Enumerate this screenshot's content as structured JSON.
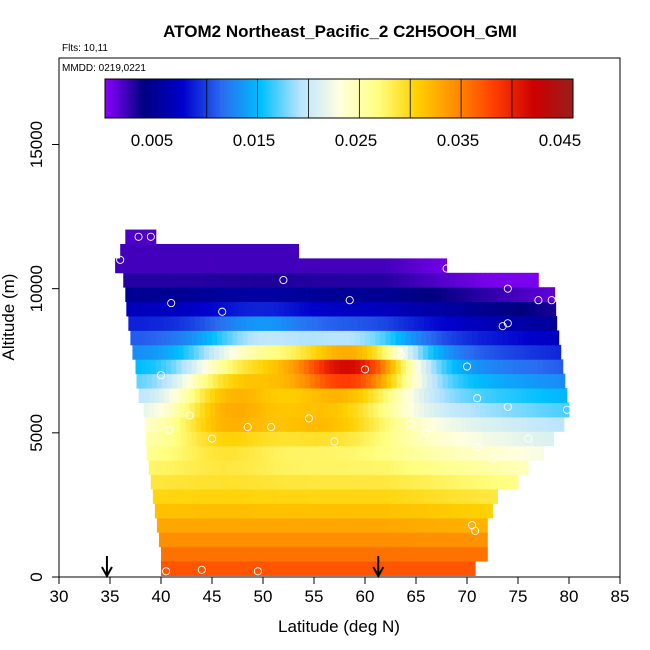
{
  "chart_data": {
    "type": "heatmap",
    "title": "ATOM2 Northeast_Pacific_2 C2H5OOH_GMI",
    "subtitle_flights": "Flts: 10,11",
    "subtitle_dates": "MMDD: 0219,0221",
    "xlabel": "Latitude (deg N)",
    "ylabel": "Altitude (m)",
    "xlim": [
      30,
      85
    ],
    "ylim": [
      0,
      18000
    ],
    "xticks": [
      "30",
      "35",
      "40",
      "45",
      "50",
      "55",
      "60",
      "65",
      "70",
      "75",
      "80",
      "85"
    ],
    "yticks": [
      "0",
      "5000",
      "10000",
      "15000"
    ],
    "colorbar": {
      "range": [
        0,
        0.046
      ],
      "ticks": [
        "0.005",
        "0.015",
        "0.025",
        "0.035",
        "0.045"
      ],
      "colors": [
        "#8b00ff",
        "#00007f",
        "#0000cd",
        "#2a6cf0",
        "#00bfff",
        "#b8e4ff",
        "#ffffe0",
        "#ffff80",
        "#ffd000",
        "#ff8c00",
        "#ff3c00",
        "#cc0000",
        "#9b1d1d"
      ]
    },
    "arrows_at_latitude": [
      34.7,
      61.3
    ],
    "altitude_bands": [
      {
        "alt": 300,
        "lat_start": 40.0,
        "lat_end": 70.8
      },
      {
        "alt": 800,
        "lat_start": 40.0,
        "lat_end": 72.0
      },
      {
        "alt": 1300,
        "lat_start": 39.8,
        "lat_end": 72.0
      },
      {
        "alt": 1800,
        "lat_start": 39.6,
        "lat_end": 72.0
      },
      {
        "alt": 2300,
        "lat_start": 39.4,
        "lat_end": 72.5
      },
      {
        "alt": 2800,
        "lat_start": 39.2,
        "lat_end": 73.0
      },
      {
        "alt": 3300,
        "lat_start": 39.0,
        "lat_end": 75.0
      },
      {
        "alt": 3800,
        "lat_start": 38.8,
        "lat_end": 76.0
      },
      {
        "alt": 4300,
        "lat_start": 38.6,
        "lat_end": 77.5
      },
      {
        "alt": 4800,
        "lat_start": 38.5,
        "lat_end": 78.5
      },
      {
        "alt": 5300,
        "lat_start": 38.4,
        "lat_end": 79.5
      },
      {
        "alt": 5800,
        "lat_start": 38.3,
        "lat_end": 80.0
      },
      {
        "alt": 6300,
        "lat_start": 37.8,
        "lat_end": 79.8
      },
      {
        "alt": 6800,
        "lat_start": 37.6,
        "lat_end": 79.6
      },
      {
        "alt": 7300,
        "lat_start": 37.5,
        "lat_end": 79.4
      },
      {
        "alt": 7800,
        "lat_start": 37.2,
        "lat_end": 79.2
      },
      {
        "alt": 8300,
        "lat_start": 37.0,
        "lat_end": 79.0
      },
      {
        "alt": 8800,
        "lat_start": 36.8,
        "lat_end": 78.8
      },
      {
        "alt": 9300,
        "lat_start": 36.6,
        "lat_end": 78.7
      },
      {
        "alt": 9800,
        "lat_start": 36.5,
        "lat_end": 78.6
      },
      {
        "alt": 10300,
        "lat_start": 36.3,
        "lat_end": 77.0
      },
      {
        "alt": 10800,
        "lat_start": 35.5,
        "lat_end": 68.0
      },
      {
        "alt": 11300,
        "lat_start": 36.0,
        "lat_end": 53.5
      },
      {
        "alt": 11800,
        "lat_start": 36.5,
        "lat_end": 39.5
      }
    ],
    "series_samples": [
      {
        "lat": 40.5,
        "alt": 200
      },
      {
        "lat": 44.0,
        "alt": 250
      },
      {
        "lat": 49.5,
        "alt": 200
      },
      {
        "lat": 36.0,
        "alt": 11000
      },
      {
        "lat": 37.8,
        "alt": 11800
      },
      {
        "lat": 39.0,
        "alt": 11800
      },
      {
        "lat": 41.0,
        "alt": 9500
      },
      {
        "lat": 46.0,
        "alt": 9200
      },
      {
        "lat": 52.0,
        "alt": 10300
      },
      {
        "lat": 58.5,
        "alt": 9600
      },
      {
        "lat": 68.0,
        "alt": 10700
      },
      {
        "lat": 74.0,
        "alt": 10000
      },
      {
        "lat": 77.0,
        "alt": 9600
      },
      {
        "lat": 78.3,
        "alt": 9600
      },
      {
        "lat": 73.5,
        "alt": 8700
      },
      {
        "lat": 74.0,
        "alt": 8800
      },
      {
        "lat": 63.5,
        "alt": 7700
      },
      {
        "lat": 60.0,
        "alt": 7200
      },
      {
        "lat": 70.0,
        "alt": 7300
      },
      {
        "lat": 71.0,
        "alt": 6200
      },
      {
        "lat": 74.0,
        "alt": 5900
      },
      {
        "lat": 79.8,
        "alt": 5800
      },
      {
        "lat": 40.0,
        "alt": 7000
      },
      {
        "lat": 42.8,
        "alt": 5600
      },
      {
        "lat": 40.8,
        "alt": 5100
      },
      {
        "lat": 45.0,
        "alt": 4800
      },
      {
        "lat": 48.5,
        "alt": 5200
      },
      {
        "lat": 50.8,
        "alt": 5200
      },
      {
        "lat": 54.5,
        "alt": 5500
      },
      {
        "lat": 57.0,
        "alt": 4700
      },
      {
        "lat": 64.5,
        "alt": 5300
      },
      {
        "lat": 66.0,
        "alt": 5000
      },
      {
        "lat": 71.0,
        "alt": 4500
      },
      {
        "lat": 72.5,
        "alt": 4100
      },
      {
        "lat": 76.0,
        "alt": 4800
      },
      {
        "lat": 70.5,
        "alt": 1800
      },
      {
        "lat": 70.8,
        "alt": 1600
      }
    ]
  }
}
